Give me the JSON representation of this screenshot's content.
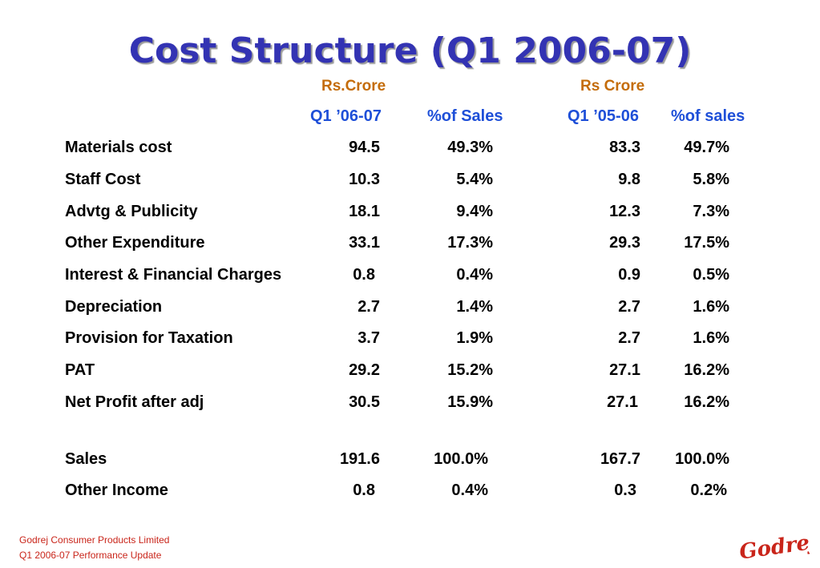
{
  "title": "Cost Structure (Q1 2006-07)",
  "units": {
    "left": "Rs.Crore",
    "right": "Rs Crore"
  },
  "columns": {
    "q1_current": "Q1 ’06-07",
    "pct_current": "%of Sales",
    "q1_prior": "Q1 ’05-06",
    "pct_prior": "%of sales"
  },
  "rows": [
    {
      "label": "Materials cost",
      "v1": "94.5",
      "p1": "49.3%",
      "v2": "83.3",
      "p2": "49.7%"
    },
    {
      "label": "Staff Cost",
      "v1": "10.3",
      "p1": "5.4%",
      "v2": "9.8",
      "p2": "5.8%"
    },
    {
      "label": "Advtg & Publicity",
      "v1": "18.1",
      "p1": "9.4%",
      "v2": "12.3",
      "p2": "7.3%"
    },
    {
      "label": "Other Expenditure",
      "v1": "33.1",
      "p1": "17.3%",
      "v2": "29.3",
      "p2": "17.5%"
    },
    {
      "label": "Interest & Financial Charges",
      "v1": "0.8",
      "p1": "0.4%",
      "v2": "0.9",
      "p2": "0.5%"
    },
    {
      "label": "Depreciation",
      "v1": "2.7",
      "p1": "1.4%",
      "v2": "2.7",
      "p2": "1.6%"
    },
    {
      "label": "Provision for Taxation",
      "v1": "3.7",
      "p1": "1.9%",
      "v2": "2.7",
      "p2": "1.6%"
    },
    {
      "label": "PAT",
      "v1": "29.2",
      "p1": "15.2%",
      "v2": "27.1",
      "p2": "16.2%"
    },
    {
      "label": "Net Profit after adj",
      "v1": "30.5",
      "p1": "15.9%",
      "v2": "27.1",
      "p2": "16.2%"
    },
    {
      "label": "Sales",
      "v1": "191.6",
      "p1": "100.0%",
      "v2": "167.7",
      "p2": "100.0%"
    },
    {
      "label": "Other Income",
      "v1": "0.8",
      "p1": "0.4%",
      "v2": "0.3",
      "p2": "0.2%"
    }
  ],
  "footer": {
    "company": "Godrej Consumer Products Limited",
    "subtitle": "Q1 2006-07 Performance Update"
  },
  "logo_text": "Godrej",
  "colors": {
    "title": "#3333b3",
    "unit": "#c46c0a",
    "header": "#1e4fd8",
    "footer": "#c9251a"
  }
}
